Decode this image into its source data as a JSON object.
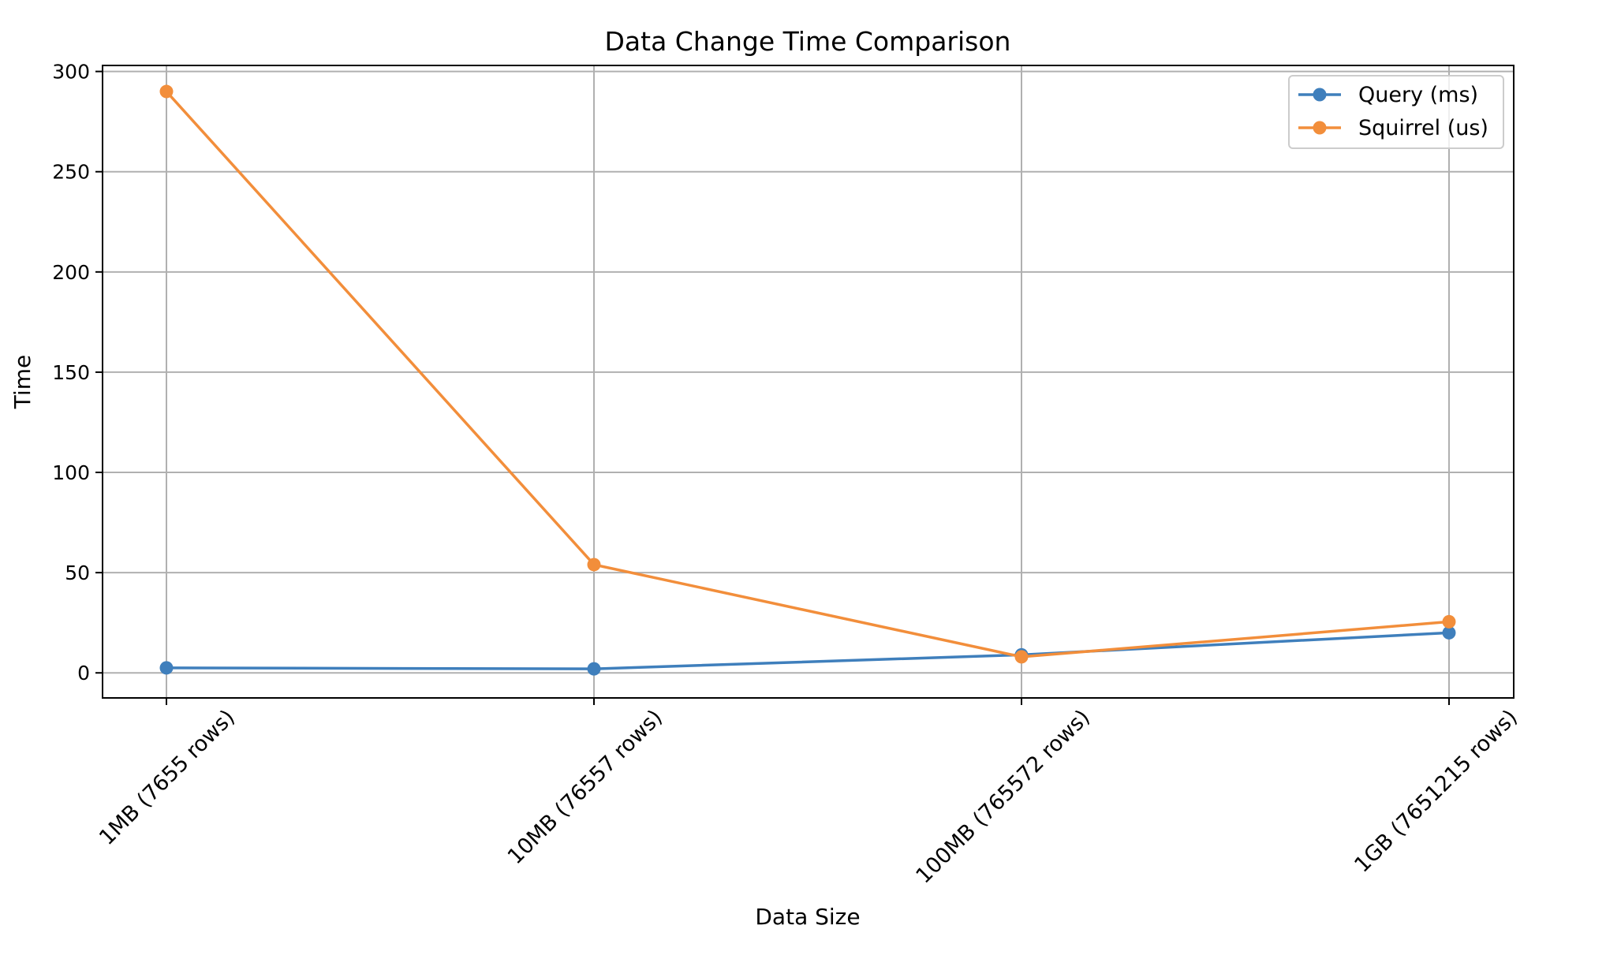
{
  "chart_data": {
    "type": "line",
    "title": "Data Change Time Comparison",
    "xlabel": "Data Size",
    "ylabel": "Time",
    "categories": [
      "1MB (7655 rows)",
      "10MB (76557 rows)",
      "100MB (765572 rows)",
      "1GB (7651215 rows)"
    ],
    "series": [
      {
        "name": "Query (ms)",
        "color": "#3f7fbc",
        "values": [
          2.5,
          2.0,
          9.0,
          20.0
        ]
      },
      {
        "name": "Squirrel (us)",
        "color": "#f28e3b",
        "values": [
          290,
          54,
          8,
          25.5
        ]
      }
    ],
    "ylim": [
      -12.5,
      303
    ],
    "yticks": [
      0,
      50,
      100,
      150,
      200,
      250,
      300
    ],
    "grid": true,
    "legend_position": "top-right"
  }
}
